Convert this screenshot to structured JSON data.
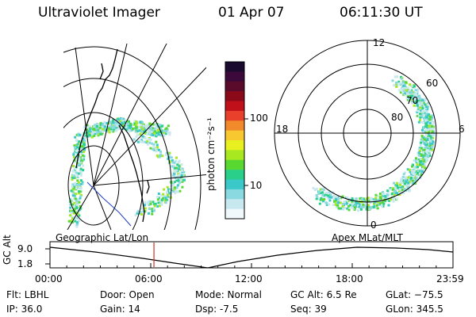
{
  "header": {
    "title": "Ultraviolet Imager",
    "date": "01 Apr 07",
    "time": "06:11:30 UT"
  },
  "geo_map": {
    "label": "Geographic Lat/Lon"
  },
  "polar_map": {
    "label": "Apex  MLat/MLT",
    "mlt_labels": {
      "top": "12",
      "left": "18",
      "right": "6",
      "bottom": "0"
    },
    "lat_labels": [
      "60",
      "70",
      "80"
    ]
  },
  "colorbar": {
    "unit": "photon cm⁻²s⁻¹",
    "ticks": [
      "100",
      "10"
    ],
    "colors": [
      "#1a0a2e",
      "#3b0a3a",
      "#5a0a2a",
      "#8a0a1a",
      "#c0101a",
      "#e8402a",
      "#f08a2a",
      "#f8c830",
      "#e8f020",
      "#a8e820",
      "#5ad832",
      "#2ad08a",
      "#3ac8c8",
      "#8ad8e0",
      "#c8e8f0",
      "#f0f8fc"
    ]
  },
  "altitude_plot": {
    "axis_label": "GC Alt",
    "y_ticks": [
      "9.0",
      "1.8"
    ],
    "time_ticks": [
      "00:00",
      "06:00",
      "12:00",
      "18:00",
      "23:59"
    ],
    "current_time_fraction": 0.258,
    "marker_color": "#d03020"
  },
  "info": {
    "filter": "Flt: LBHL",
    "ip": "IP: 36.0",
    "door": "Door: Open",
    "gain": "Gain: 14",
    "mode": "Mode: Normal",
    "dsp": "Dsp:    -7.5",
    "gc_alt": "GC Alt: 6.5 Re",
    "seq": "Seq: 39",
    "glat": "GLat: −75.5",
    "glon": "GLon: 345.5"
  }
}
